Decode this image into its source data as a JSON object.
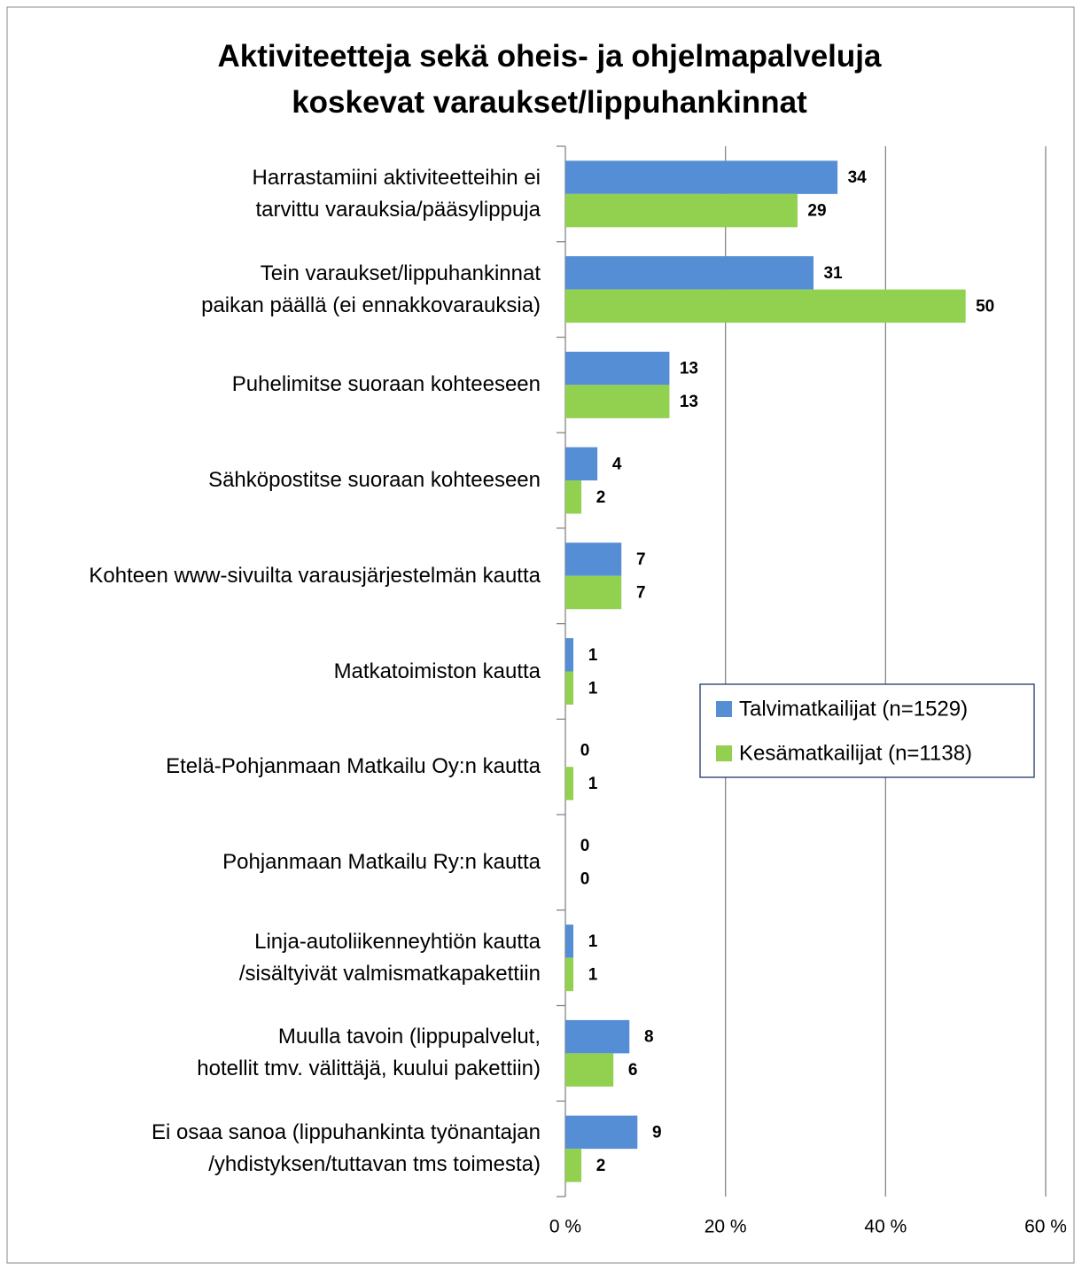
{
  "chart_data": {
    "type": "barh",
    "title": "Aktiviteetteja sekä oheis- ja ohjelmapalveluja\nkoskevat varaukset/lippuhankinnat",
    "categories": [
      "Harrastamiini aktiviteetteihin ei\ntarvittu varauksia/pääsylippuja",
      "Tein varaukset/lippuhankinnat\npaikan päällä (ei ennakkovarauksia)",
      "Puhelimitse suoraan kohteeseen",
      "Sähköpostitse suoraan kohteeseen",
      "Kohteen www-sivuilta varausjärjestelmän kautta",
      "Matkatoimiston kautta",
      "Etelä-Pohjanmaan Matkailu Oy:n kautta",
      "Pohjanmaan Matkailu Ry:n kautta",
      "Linja-autoliikenneyhtiön kautta\n/sisältyivät valmismatkapakettiin",
      "Muulla tavoin (lippupalvelut,\nhotellit tmv. välittäjä, kuului pakettiin)",
      "Ei osaa sanoa (lippuhankinta työnantajan\n/yhdistyksen/tuttavan tms toimesta)"
    ],
    "series": [
      {
        "name": "Talvimatkailijat (n=1529)",
        "color": "#558ed5",
        "values": [
          34,
          31,
          13,
          4,
          7,
          1,
          0,
          0,
          1,
          8,
          9
        ]
      },
      {
        "name": "Kesämatkailijat (n=1138)",
        "color": "#92d050",
        "values": [
          29,
          50,
          13,
          2,
          7,
          1,
          1,
          0,
          1,
          6,
          2
        ]
      }
    ],
    "xlim": [
      0,
      60
    ],
    "xticks": [
      {
        "value": 0,
        "label": "0 %"
      },
      {
        "value": 20,
        "label": "20 %"
      },
      {
        "value": 40,
        "label": "40 %"
      },
      {
        "value": 60,
        "label": "60 %"
      }
    ],
    "grid": true,
    "legend": "right"
  }
}
